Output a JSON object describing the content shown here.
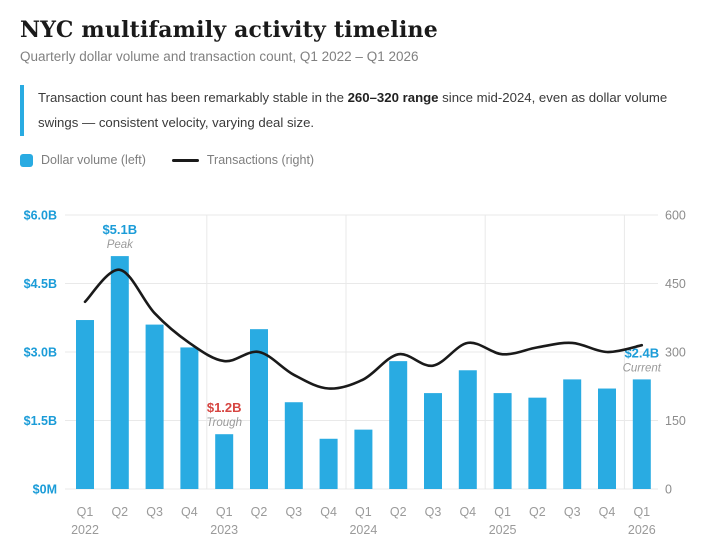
{
  "header": {
    "title": "NYC multifamily activity timeline",
    "subtitle": "Quarterly dollar volume and transaction count, Q1 2022 – Q1 2026"
  },
  "callout": {
    "text_pre": "Transaction count has been remarkably stable in the ",
    "text_bold": "260–320 range",
    "text_post": " since mid-2024, even as dollar volume swings — consistent velocity, varying deal size."
  },
  "legend": [
    {
      "swatch": "blue-square",
      "label": "Dollar volume (left)"
    },
    {
      "swatch": "black-line",
      "label": "Transactions (right)"
    }
  ],
  "colors": {
    "bar_blue": "#29abe2",
    "accent_blue": "#1b9cd8",
    "annotation_red": "#d64541",
    "line_black": "#1a1a1a",
    "grid_grey": "#e9e9e9",
    "axis_grey": "#8c8c8c",
    "label_grey": "#9a9a9a",
    "sub_italic_grey": "#9a9a9a"
  },
  "chart_data": {
    "type": "bar",
    "combo": "bar+line",
    "title": "NYC multifamily activity timeline",
    "categories": [
      "Q1 2022",
      "Q2 2022",
      "Q3 2022",
      "Q4 2022",
      "Q1 2023",
      "Q2 2023",
      "Q3 2023",
      "Q4 2023",
      "Q1 2024",
      "Q2 2024",
      "Q3 2024",
      "Q4 2024",
      "Q1 2025",
      "Q2 2025",
      "Q3 2025",
      "Q4 2025",
      "Q1 2026"
    ],
    "quarter_labels": [
      "Q1",
      "Q2",
      "Q3",
      "Q4",
      "Q1",
      "Q2",
      "Q3",
      "Q4",
      "Q1",
      "Q2",
      "Q3",
      "Q4",
      "Q1",
      "Q2",
      "Q3",
      "Q4",
      "Q1"
    ],
    "year_labels": [
      {
        "index": 0,
        "label": "2022"
      },
      {
        "index": 4,
        "label": "2023"
      },
      {
        "index": 8,
        "label": "2024"
      },
      {
        "index": 12,
        "label": "2025"
      },
      {
        "index": 16,
        "label": "2026"
      }
    ],
    "series": [
      {
        "name": "Dollar volume (left)",
        "type": "bar",
        "axis": "left",
        "unit": "USD billions",
        "values": [
          3.7,
          5.1,
          3.6,
          3.1,
          1.2,
          3.5,
          1.9,
          1.1,
          1.3,
          2.8,
          2.1,
          2.6,
          2.1,
          2.0,
          2.4,
          2.2,
          2.4
        ]
      },
      {
        "name": "Transactions (right)",
        "type": "line",
        "axis": "right",
        "unit": "count",
        "values": [
          410,
          480,
          385,
          320,
          280,
          300,
          250,
          220,
          240,
          295,
          270,
          320,
          295,
          310,
          320,
          300,
          315
        ]
      }
    ],
    "left_axis": {
      "ticks": [
        "$6.0B",
        "$4.5B",
        "$3.0B",
        "$1.5B",
        "$0M"
      ],
      "tick_values": [
        6.0,
        4.5,
        3.0,
        1.5,
        0
      ],
      "range": [
        0,
        6.0
      ]
    },
    "right_axis": {
      "ticks": [
        "600",
        "450",
        "300",
        "150",
        "0"
      ],
      "tick_values": [
        600,
        450,
        300,
        150,
        0
      ],
      "range": [
        0,
        600
      ]
    },
    "grid": {
      "horizontal": true,
      "vertical_year_dividers": true
    },
    "legend_position": "top-left",
    "annotations": [
      {
        "quarter_index": 1,
        "value_label": "$5.1B",
        "sub_label": "Peak",
        "color": "blue"
      },
      {
        "quarter_index": 4,
        "value_label": "$1.2B",
        "sub_label": "Trough",
        "color": "red"
      },
      {
        "quarter_index": 16,
        "value_label": "$2.4B",
        "sub_label": "Current",
        "color": "blue"
      }
    ]
  }
}
